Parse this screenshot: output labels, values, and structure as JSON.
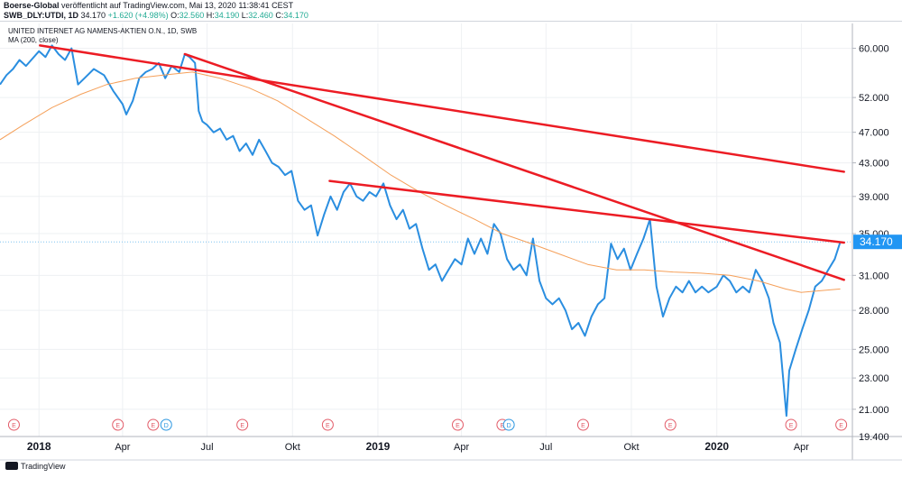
{
  "header": {
    "publisher": "Boerse-Global",
    "published_text": "veröffentlicht auf TradingView.com, Mai 13, 2020 11:38:41 CEST",
    "symbol": "SWB_DLY:UTDI, 1D",
    "last": "34.170",
    "change": "+1.620 (+4.98%)",
    "open_label": "O:",
    "open": "32.560",
    "high_label": "H:",
    "high": "34.190",
    "low_label": "L:",
    "low": "32.460",
    "close_label": "C:",
    "close": "34.170"
  },
  "chart_title": "UNITED INTERNET AG NAMENS-AKTIEN O.N., 1D, SWB",
  "ma_label": "MA (200, close)",
  "footer": {
    "brand": "TradingView"
  },
  "colors": {
    "price": "#2a8ee0",
    "ma": "#f5a05a",
    "trendline": "#ec1c24",
    "last_price_bg": "#2196f3",
    "grid": "#eef0f3",
    "event_e": "#e25b68",
    "event_d": "#2a96e0"
  },
  "chart_data": {
    "type": "line",
    "y_scale": "log",
    "ylim": [
      19.4,
      64.5
    ],
    "xlim": [
      "2017-11-20",
      "2020-05-26"
    ],
    "y_ticks": [
      "60.000",
      "52.000",
      "47.000",
      "43.000",
      "39.000",
      "35.000",
      "31.000",
      "28.000",
      "25.000",
      "23.000",
      "21.000",
      "19.400"
    ],
    "x_ticks": [
      {
        "label": "2018",
        "date": "2018-01-01"
      },
      {
        "label": "Apr",
        "date": "2018-04-01"
      },
      {
        "label": "Jul",
        "date": "2018-07-01"
      },
      {
        "label": "Okt",
        "date": "2018-10-01"
      },
      {
        "label": "2019",
        "date": "2019-01-01"
      },
      {
        "label": "Apr",
        "date": "2019-04-01"
      },
      {
        "label": "Jul",
        "date": "2019-07-01"
      },
      {
        "label": "Okt",
        "date": "2019-10-01"
      },
      {
        "label": "2020",
        "date": "2020-01-01"
      },
      {
        "label": "Apr",
        "date": "2020-04-01"
      }
    ],
    "last_price": "34.170",
    "series": [
      {
        "name": "UTDI",
        "points": [
          [
            "2017-11-20",
            54.0
          ],
          [
            "2017-11-27",
            55.5
          ],
          [
            "2017-12-04",
            56.5
          ],
          [
            "2017-12-11",
            58.0
          ],
          [
            "2017-12-18",
            57.0
          ],
          [
            "2018-01-01",
            59.5
          ],
          [
            "2018-01-08",
            58.5
          ],
          [
            "2018-01-15",
            60.5
          ],
          [
            "2018-01-22",
            59.0
          ],
          [
            "2018-01-29",
            58.0
          ],
          [
            "2018-02-05",
            60.0
          ],
          [
            "2018-02-12",
            54.0
          ],
          [
            "2018-02-19",
            55.0
          ],
          [
            "2018-03-01",
            56.5
          ],
          [
            "2018-03-12",
            55.5
          ],
          [
            "2018-03-22",
            53.0
          ],
          [
            "2018-04-01",
            51.0
          ],
          [
            "2018-04-05",
            49.5
          ],
          [
            "2018-04-12",
            51.5
          ],
          [
            "2018-04-19",
            55.0
          ],
          [
            "2018-04-26",
            56.0
          ],
          [
            "2018-05-03",
            56.5
          ],
          [
            "2018-05-10",
            57.5
          ],
          [
            "2018-05-17",
            55.0
          ],
          [
            "2018-05-24",
            57.0
          ],
          [
            "2018-06-01",
            56.0
          ],
          [
            "2018-06-07",
            59.0
          ],
          [
            "2018-06-12",
            58.5
          ],
          [
            "2018-06-18",
            57.5
          ],
          [
            "2018-06-22",
            50.0
          ],
          [
            "2018-06-26",
            48.5
          ],
          [
            "2018-07-01",
            48.0
          ],
          [
            "2018-07-08",
            47.0
          ],
          [
            "2018-07-15",
            47.5
          ],
          [
            "2018-07-22",
            46.0
          ],
          [
            "2018-07-29",
            46.5
          ],
          [
            "2018-08-05",
            44.5
          ],
          [
            "2018-08-12",
            45.5
          ],
          [
            "2018-08-19",
            44.0
          ],
          [
            "2018-08-26",
            46.0
          ],
          [
            "2018-09-02",
            44.5
          ],
          [
            "2018-09-09",
            43.0
          ],
          [
            "2018-09-16",
            42.5
          ],
          [
            "2018-09-23",
            41.5
          ],
          [
            "2018-09-30",
            42.0
          ],
          [
            "2018-10-07",
            38.5
          ],
          [
            "2018-10-14",
            37.5
          ],
          [
            "2018-10-21",
            38.0
          ],
          [
            "2018-10-28",
            34.8
          ],
          [
            "2018-11-04",
            37.0
          ],
          [
            "2018-11-11",
            39.0
          ],
          [
            "2018-11-18",
            37.5
          ],
          [
            "2018-11-25",
            39.5
          ],
          [
            "2018-12-02",
            40.5
          ],
          [
            "2018-12-09",
            39.0
          ],
          [
            "2018-12-16",
            38.5
          ],
          [
            "2018-12-23",
            39.5
          ],
          [
            "2018-12-30",
            39.0
          ],
          [
            "2019-01-07",
            40.5
          ],
          [
            "2019-01-14",
            38.0
          ],
          [
            "2019-01-21",
            36.5
          ],
          [
            "2019-01-28",
            37.5
          ],
          [
            "2019-02-04",
            35.5
          ],
          [
            "2019-02-11",
            36.0
          ],
          [
            "2019-02-18",
            33.5
          ],
          [
            "2019-02-25",
            31.5
          ],
          [
            "2019-03-04",
            32.0
          ],
          [
            "2019-03-11",
            30.5
          ],
          [
            "2019-03-18",
            31.5
          ],
          [
            "2019-03-25",
            32.5
          ],
          [
            "2019-04-01",
            32.0
          ],
          [
            "2019-04-08",
            34.5
          ],
          [
            "2019-04-15",
            33.0
          ],
          [
            "2019-04-22",
            34.5
          ],
          [
            "2019-04-29",
            33.0
          ],
          [
            "2019-05-06",
            36.0
          ],
          [
            "2019-05-13",
            35.0
          ],
          [
            "2019-05-20",
            32.5
          ],
          [
            "2019-05-27",
            31.5
          ],
          [
            "2019-06-03",
            32.0
          ],
          [
            "2019-06-10",
            31.0
          ],
          [
            "2019-06-17",
            34.5
          ],
          [
            "2019-06-24",
            30.5
          ],
          [
            "2019-07-01",
            29.0
          ],
          [
            "2019-07-08",
            28.5
          ],
          [
            "2019-07-15",
            29.0
          ],
          [
            "2019-07-22",
            28.0
          ],
          [
            "2019-07-29",
            26.5
          ],
          [
            "2019-08-05",
            27.0
          ],
          [
            "2019-08-12",
            26.0
          ],
          [
            "2019-08-19",
            27.5
          ],
          [
            "2019-08-26",
            28.5
          ],
          [
            "2019-09-02",
            29.0
          ],
          [
            "2019-09-09",
            34.0
          ],
          [
            "2019-09-16",
            32.5
          ],
          [
            "2019-09-23",
            33.5
          ],
          [
            "2019-09-30",
            31.5
          ],
          [
            "2019-10-07",
            33.0
          ],
          [
            "2019-10-14",
            34.5
          ],
          [
            "2019-10-21",
            36.5
          ],
          [
            "2019-10-28",
            30.0
          ],
          [
            "2019-11-04",
            27.5
          ],
          [
            "2019-11-11",
            29.0
          ],
          [
            "2019-11-18",
            30.0
          ],
          [
            "2019-11-25",
            29.5
          ],
          [
            "2019-12-02",
            30.5
          ],
          [
            "2019-12-09",
            29.5
          ],
          [
            "2019-12-16",
            30.0
          ],
          [
            "2019-12-23",
            29.5
          ],
          [
            "2020-01-01",
            30.0
          ],
          [
            "2020-01-08",
            31.0
          ],
          [
            "2020-01-15",
            30.5
          ],
          [
            "2020-01-22",
            29.5
          ],
          [
            "2020-01-29",
            30.0
          ],
          [
            "2020-02-05",
            29.5
          ],
          [
            "2020-02-12",
            31.5
          ],
          [
            "2020-02-19",
            30.5
          ],
          [
            "2020-02-26",
            29.0
          ],
          [
            "2020-03-02",
            27.0
          ],
          [
            "2020-03-09",
            25.5
          ],
          [
            "2020-03-16",
            20.6
          ],
          [
            "2020-03-19",
            23.5
          ],
          [
            "2020-03-26",
            25.0
          ],
          [
            "2020-04-02",
            26.5
          ],
          [
            "2020-04-09",
            28.0
          ],
          [
            "2020-04-16",
            30.0
          ],
          [
            "2020-04-23",
            30.5
          ],
          [
            "2020-04-30",
            31.5
          ],
          [
            "2020-05-07",
            32.5
          ],
          [
            "2020-05-13",
            34.17
          ]
        ]
      },
      {
        "name": "MA (200, close)",
        "points": [
          [
            "2017-11-20",
            46.0
          ],
          [
            "2017-12-15",
            48.0
          ],
          [
            "2018-01-15",
            50.5
          ],
          [
            "2018-02-15",
            52.5
          ],
          [
            "2018-03-15",
            54.0
          ],
          [
            "2018-04-15",
            55.0
          ],
          [
            "2018-05-15",
            55.5
          ],
          [
            "2018-06-15",
            56.0
          ],
          [
            "2018-07-15",
            55.0
          ],
          [
            "2018-08-15",
            53.5
          ],
          [
            "2018-09-15",
            51.5
          ],
          [
            "2018-10-15",
            49.0
          ],
          [
            "2018-11-15",
            46.5
          ],
          [
            "2018-12-15",
            44.0
          ],
          [
            "2019-01-15",
            41.5
          ],
          [
            "2019-02-15",
            39.5
          ],
          [
            "2019-03-15",
            38.0
          ],
          [
            "2019-04-15",
            36.5
          ],
          [
            "2019-05-15",
            35.0
          ],
          [
            "2019-06-15",
            34.0
          ],
          [
            "2019-07-15",
            33.0
          ],
          [
            "2019-08-15",
            32.0
          ],
          [
            "2019-09-15",
            31.5
          ],
          [
            "2019-10-15",
            31.5
          ],
          [
            "2019-11-15",
            31.3
          ],
          [
            "2019-12-15",
            31.2
          ],
          [
            "2020-01-15",
            31.0
          ],
          [
            "2020-02-15",
            30.5
          ],
          [
            "2020-03-15",
            29.8
          ],
          [
            "2020-04-01",
            29.5
          ],
          [
            "2020-05-13",
            29.8
          ]
        ]
      }
    ],
    "trendlines": [
      {
        "from": [
          "2018-01-02",
          60.5
        ],
        "to": [
          "2020-05-17",
          41.9
        ]
      },
      {
        "from": [
          "2018-06-07",
          59.0
        ],
        "to": [
          "2020-05-17",
          30.6
        ]
      },
      {
        "from": [
          "2018-11-10",
          40.8
        ],
        "to": [
          "2020-05-17",
          34.1
        ]
      }
    ],
    "events": [
      {
        "type": "E",
        "date": "2017-12-05"
      },
      {
        "type": "E",
        "date": "2018-03-27"
      },
      {
        "type": "E",
        "date": "2018-05-04"
      },
      {
        "type": "D",
        "date": "2018-05-18"
      },
      {
        "type": "E",
        "date": "2018-08-08"
      },
      {
        "type": "E",
        "date": "2018-11-08"
      },
      {
        "type": "E",
        "date": "2019-03-28"
      },
      {
        "type": "E",
        "date": "2019-05-15"
      },
      {
        "type": "D",
        "date": "2019-05-22"
      },
      {
        "type": "E",
        "date": "2019-08-10"
      },
      {
        "type": "E",
        "date": "2019-11-12"
      },
      {
        "type": "E",
        "date": "2020-03-21"
      },
      {
        "type": "E",
        "date": "2020-05-14"
      }
    ]
  }
}
